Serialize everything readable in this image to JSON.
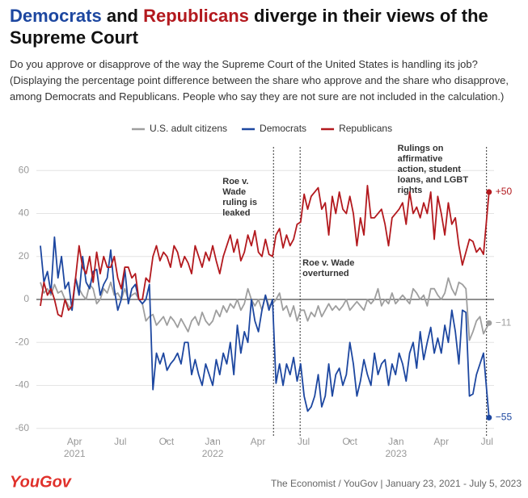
{
  "chart_data": {
    "type": "line",
    "title_parts": [
      {
        "text": "Democrats",
        "series": 1
      },
      {
        "text": "and"
      },
      {
        "text": "Republicans",
        "series": 2
      },
      {
        "text": "diverge in their views of the Supreme Court"
      }
    ],
    "subtitle": "Do you approve or disapprove of the way the Supreme Court of the United States is handling its job? (Displaying the percentage point difference between the share who approve and the share who disapprove, among Democrats and Republicans. People who say they are not sure are not included in the calculation.)",
    "source": "The Economist / YouGov | January 23, 2021 - July 5, 2023",
    "logo": "YouGov",
    "x": [
      "2021-01-23",
      "2021-01-30",
      "2021-02-06",
      "2021-02-13",
      "2021-02-20",
      "2021-02-27",
      "2021-03-06",
      "2021-03-13",
      "2021-03-20",
      "2021-03-27",
      "2021-04-03",
      "2021-04-10",
      "2021-04-17",
      "2021-04-24",
      "2021-05-01",
      "2021-05-08",
      "2021-05-15",
      "2021-05-22",
      "2021-05-29",
      "2021-06-05",
      "2021-06-12",
      "2021-06-19",
      "2021-06-26",
      "2021-07-03",
      "2021-07-10",
      "2021-07-17",
      "2021-07-24",
      "2021-07-31",
      "2021-08-07",
      "2021-08-14",
      "2021-08-21",
      "2021-08-28",
      "2021-09-04",
      "2021-09-11",
      "2021-09-18",
      "2021-09-25",
      "2021-10-02",
      "2021-10-09",
      "2021-10-16",
      "2021-10-23",
      "2021-10-30",
      "2021-11-06",
      "2021-11-13",
      "2021-11-20",
      "2021-11-27",
      "2021-12-04",
      "2021-12-11",
      "2021-12-18",
      "2021-12-25",
      "2022-01-01",
      "2022-01-08",
      "2022-01-15",
      "2022-01-22",
      "2022-01-29",
      "2022-02-05",
      "2022-02-12",
      "2022-02-19",
      "2022-02-26",
      "2022-03-05",
      "2022-03-12",
      "2022-03-19",
      "2022-03-26",
      "2022-04-02",
      "2022-04-09",
      "2022-04-16",
      "2022-04-23",
      "2022-04-30",
      "2022-05-07",
      "2022-05-14",
      "2022-05-21",
      "2022-05-28",
      "2022-06-04",
      "2022-06-11",
      "2022-06-18",
      "2022-06-25",
      "2022-07-02",
      "2022-07-09",
      "2022-07-16",
      "2022-07-23",
      "2022-07-30",
      "2022-08-06",
      "2022-08-13",
      "2022-08-20",
      "2022-08-27",
      "2022-09-03",
      "2022-09-10",
      "2022-09-17",
      "2022-09-24",
      "2022-10-01",
      "2022-10-08",
      "2022-10-15",
      "2022-10-22",
      "2022-10-29",
      "2022-11-05",
      "2022-11-12",
      "2022-11-19",
      "2022-11-26",
      "2022-12-03",
      "2022-12-10",
      "2022-12-17",
      "2022-12-24",
      "2022-12-31",
      "2023-01-07",
      "2023-01-14",
      "2023-01-21",
      "2023-01-28",
      "2023-02-04",
      "2023-02-11",
      "2023-02-18",
      "2023-02-25",
      "2023-03-04",
      "2023-03-11",
      "2023-03-18",
      "2023-03-25",
      "2023-04-01",
      "2023-04-08",
      "2023-04-15",
      "2023-04-22",
      "2023-04-29",
      "2023-05-06",
      "2023-05-13",
      "2023-05-20",
      "2023-05-27",
      "2023-06-03",
      "2023-06-10",
      "2023-06-17",
      "2023-06-24",
      "2023-07-05"
    ],
    "series": [
      {
        "name": "U.S. adult citizens",
        "color": "#9e9e9e",
        "last_label": "−11",
        "values": [
          8,
          3,
          5,
          2,
          7,
          3,
          4,
          0,
          -3,
          -5,
          10,
          5,
          2,
          0,
          7,
          5,
          -2,
          0,
          5,
          3,
          8,
          2,
          3,
          0,
          5,
          0,
          2,
          3,
          0,
          -2,
          -10,
          -8,
          -7,
          -12,
          -10,
          -8,
          -12,
          -8,
          -10,
          -13,
          -9,
          -12,
          -15,
          -10,
          -8,
          -12,
          -6,
          -10,
          -12,
          -10,
          -5,
          -8,
          -3,
          -6,
          -2,
          -4,
          0,
          -5,
          -2,
          5,
          0,
          -3,
          0,
          -5,
          2,
          -3,
          -2,
          0,
          3,
          -5,
          -3,
          -8,
          -3,
          -10,
          -5,
          -5,
          -10,
          -6,
          -8,
          -3,
          -8,
          -5,
          -2,
          -5,
          -3,
          -5,
          -3,
          0,
          -5,
          -3,
          -1,
          -3,
          -5,
          0,
          -2,
          0,
          5,
          -3,
          0,
          -2,
          3,
          -2,
          0,
          2,
          0,
          -2,
          5,
          3,
          0,
          2,
          -3,
          5,
          5,
          2,
          0,
          3,
          10,
          5,
          2,
          8,
          7,
          5,
          -19,
          -15,
          -10,
          -8,
          -16,
          -11
        ]
      },
      {
        "name": "Democrats",
        "color": "#1d47a0",
        "last_label": "−55",
        "values": [
          25,
          8,
          13,
          3,
          29,
          10,
          20,
          5,
          8,
          -5,
          10,
          2,
          20,
          8,
          5,
          13,
          14,
          2,
          7,
          10,
          23,
          5,
          -5,
          0,
          14,
          -2,
          5,
          7,
          0,
          -2,
          0,
          7,
          -42,
          -25,
          -30,
          -25,
          -33,
          -30,
          -28,
          -25,
          -30,
          -20,
          -20,
          -35,
          -28,
          -35,
          -40,
          -30,
          -35,
          -40,
          -28,
          -35,
          -25,
          -30,
          -20,
          -35,
          -12,
          -25,
          -15,
          -20,
          0,
          -10,
          -15,
          -5,
          2,
          -5,
          0,
          -39,
          -30,
          -40,
          -30,
          -35,
          -27,
          -38,
          -30,
          -45,
          -52,
          -50,
          -45,
          -35,
          -50,
          -45,
          -30,
          -45,
          -35,
          -32,
          -40,
          -35,
          -20,
          -30,
          -45,
          -38,
          -28,
          -35,
          -40,
          -25,
          -35,
          -30,
          -28,
          -40,
          -30,
          -35,
          -25,
          -30,
          -38,
          -25,
          -20,
          -32,
          -15,
          -28,
          -20,
          -13,
          -25,
          -18,
          -25,
          -12,
          -20,
          -5,
          -15,
          -30,
          -5,
          -6,
          -45,
          -44,
          -35,
          -30,
          -25,
          -55
        ]
      },
      {
        "name": "Republicans",
        "color": "#b3191e",
        "last_label": "+50",
        "values": [
          -3,
          8,
          2,
          5,
          0,
          -7,
          -8,
          0,
          -5,
          -3,
          10,
          25,
          15,
          12,
          20,
          8,
          22,
          12,
          20,
          15,
          15,
          20,
          10,
          5,
          15,
          15,
          10,
          12,
          0,
          0,
          10,
          8,
          20,
          25,
          18,
          22,
          20,
          15,
          25,
          22,
          15,
          20,
          17,
          12,
          25,
          20,
          15,
          22,
          18,
          25,
          18,
          12,
          20,
          25,
          30,
          22,
          28,
          18,
          22,
          30,
          25,
          32,
          22,
          20,
          28,
          21,
          20,
          30,
          33,
          24,
          30,
          25,
          28,
          35,
          36,
          49,
          42,
          48,
          50,
          52,
          42,
          45,
          30,
          48,
          40,
          50,
          42,
          40,
          48,
          40,
          25,
          38,
          30,
          53,
          38,
          38,
          40,
          42,
          35,
          25,
          38,
          40,
          42,
          45,
          35,
          50,
          40,
          43,
          38,
          45,
          40,
          50,
          28,
          48,
          40,
          30,
          45,
          35,
          38,
          25,
          16,
          22,
          28,
          27,
          22,
          24,
          21,
          50
        ]
      }
    ],
    "xlim": [
      "2021-01-15",
      "2023-07-15"
    ],
    "xticks": [
      {
        "value": "2021-04-01",
        "label": "Apr"
      },
      {
        "value": "2021-07-01",
        "label": "Jul"
      },
      {
        "value": "2021-10-01",
        "label": "Oct"
      },
      {
        "value": "2022-01-01",
        "label": "Jan"
      },
      {
        "value": "2022-04-01",
        "label": "Apr"
      },
      {
        "value": "2022-07-01",
        "label": "Jul"
      },
      {
        "value": "2022-10-01",
        "label": "Oct"
      },
      {
        "value": "2023-01-01",
        "label": "Jan"
      },
      {
        "value": "2023-04-01",
        "label": "Apr"
      },
      {
        "value": "2023-07-01",
        "label": "Jul"
      }
    ],
    "xtick_years": [
      {
        "value": "2021-04-01",
        "label": "2021"
      },
      {
        "value": "2022-01-01",
        "label": "2022"
      },
      {
        "value": "2023-01-01",
        "label": "2023"
      }
    ],
    "ylim": [
      -65,
      65
    ],
    "yticks": [
      -60,
      -40,
      -20,
      0,
      20,
      40,
      60
    ],
    "grid": true,
    "legend": "top",
    "annotations": [
      {
        "x": "2022-05-02",
        "lines": [
          "Roe v.",
          "Wade",
          "ruling is",
          "leaked"
        ]
      },
      {
        "x": "2022-06-24",
        "lines": [
          "Roe v. Wade",
          "overturned"
        ]
      },
      {
        "x": "2023-06-30",
        "lines": [
          "Rulings on",
          "affirmative",
          "action, student",
          "loans, and LGBT",
          "rights"
        ]
      }
    ]
  }
}
